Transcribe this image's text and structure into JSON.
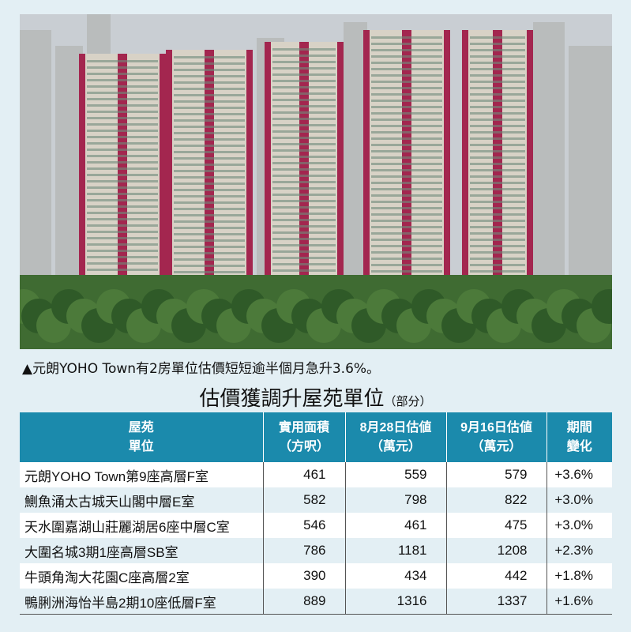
{
  "photo": {
    "description_icon": "photo-icon"
  },
  "caption": "▲元朗YOHO  Town有2房單位估價短短逾半個月急升3.6%。",
  "table_title": {
    "main": "估價獲調升屋苑單位",
    "note": "（部分）"
  },
  "table": {
    "headers": [
      {
        "line1": "屋苑",
        "line2": "單位"
      },
      {
        "line1": "實用面積",
        "line2": "（方呎）"
      },
      {
        "line1": "8月28日估値",
        "line2": "（萬元）"
      },
      {
        "line1": "9月16日估値",
        "line2": "（萬元）"
      },
      {
        "line1": "期間",
        "line2": "變化"
      }
    ],
    "rows": [
      [
        "元朗YOHO  Town第9座高層F室",
        "461",
        "559",
        "579",
        "+3.6%"
      ],
      [
        "鰂魚涌太古城天山閣中層E室",
        "582",
        "798",
        "822",
        "+3.0%"
      ],
      [
        "天水圍嘉湖山莊麗湖居6座中層C室",
        "546",
        "461",
        "475",
        "+3.0%"
      ],
      [
        "大圍名城3期1座高層SB室",
        "786",
        "1181",
        "1208",
        "+2.3%"
      ],
      [
        "牛頭角淘大花園C座高層2室",
        "390",
        "434",
        "442",
        "+1.8%"
      ],
      [
        "鴨脷洲海怡半島2期10座低層F室",
        "889",
        "1316",
        "1337",
        "+1.6%"
      ]
    ]
  },
  "colors": {
    "header": "#1b8aac",
    "background": "#e3eff4",
    "tower_accent": "#a3264f"
  }
}
